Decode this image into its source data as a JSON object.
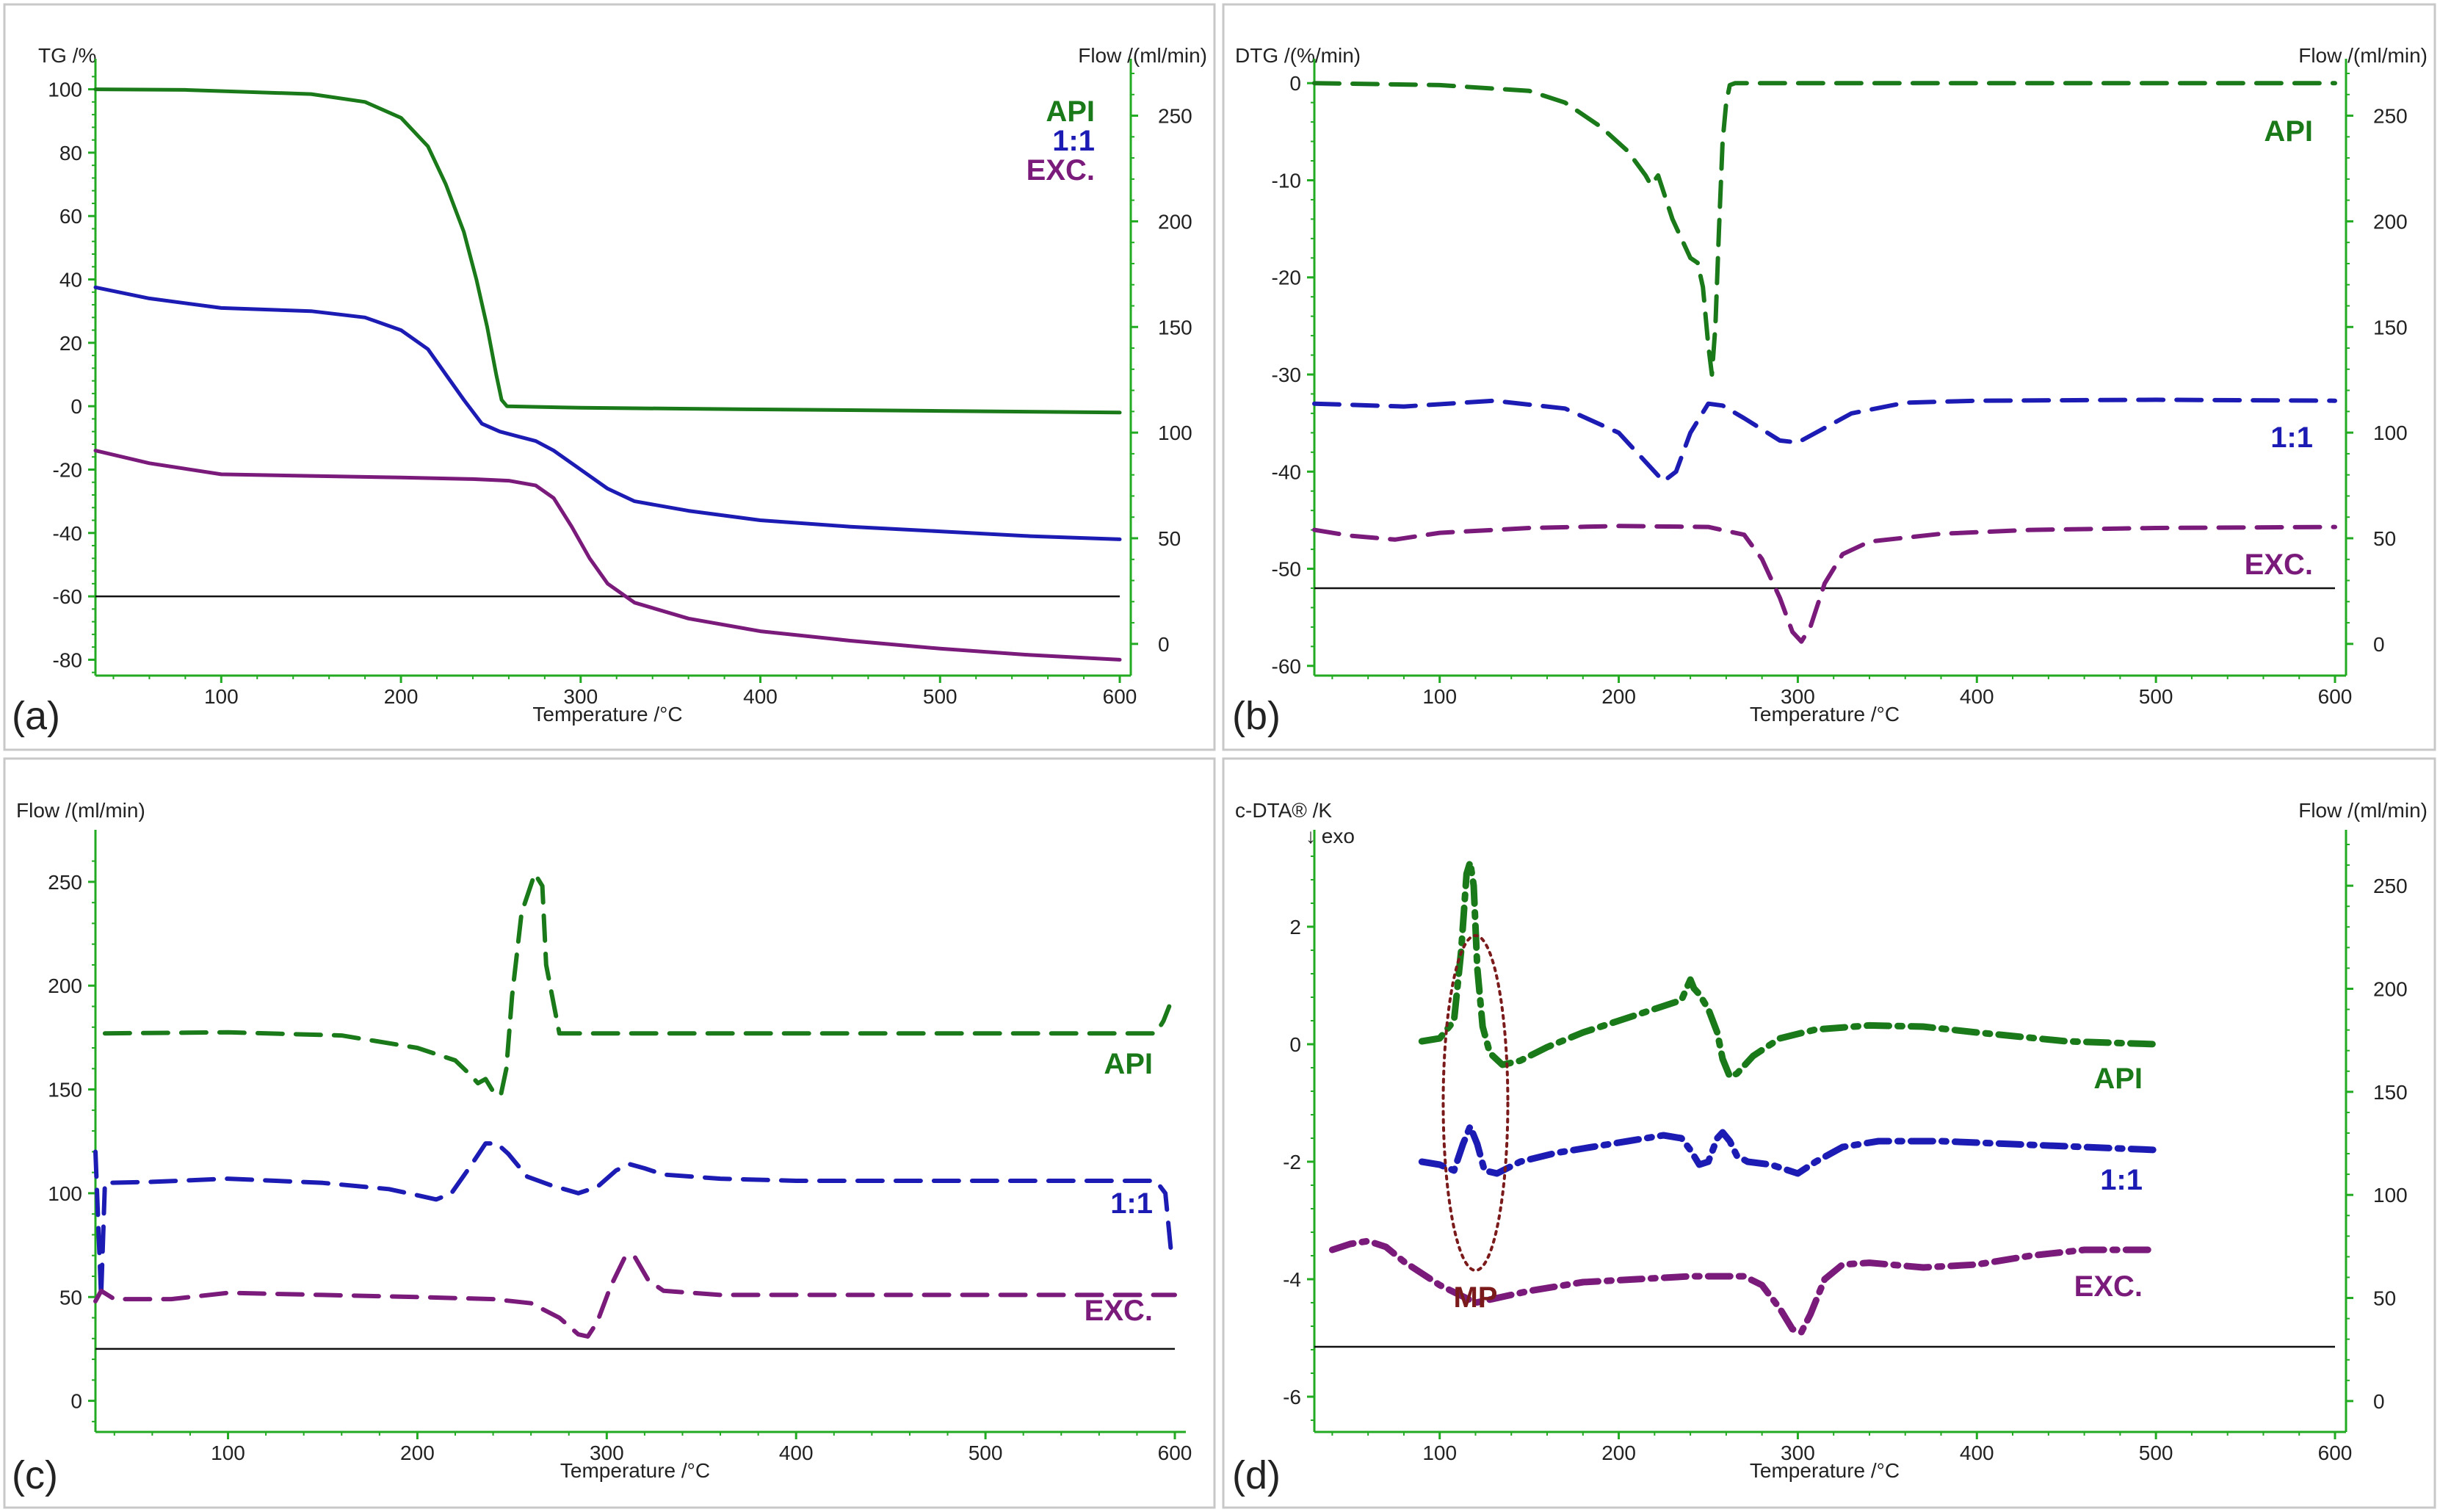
{
  "figure": {
    "panel_labels": [
      "(a)",
      "(b)",
      "(c)",
      "(d)"
    ]
  },
  "colors": {
    "api": "#1a7a1a",
    "mix": "#1c1cb4",
    "exc": "#7a1a7a",
    "mp": "#7a1a1a",
    "axis": "#22aa22",
    "baseline": "#111111",
    "frame": "#c8c8c8"
  },
  "chart_data": [
    {
      "type": "line",
      "panel": "(a)",
      "ylabel_left": "TG /%",
      "ylabel_right": "Flow /(ml/min)",
      "xlabel": "Temperature /°C",
      "xlim": [
        30,
        600
      ],
      "ylim_left": [
        -85,
        105
      ],
      "ylim_right": [
        -15,
        270
      ],
      "xticks": [
        100,
        200,
        300,
        400,
        500,
        600
      ],
      "yticks_left": [
        100,
        80,
        60,
        40,
        20,
        0,
        -20,
        -40,
        -60,
        -80
      ],
      "yticks_right": [
        250,
        200,
        150,
        100,
        50,
        0
      ],
      "style": "solid",
      "legend": [
        "API",
        "1:1",
        "EXC."
      ],
      "baseline_left": -60,
      "series": [
        {
          "name": "API",
          "x": [
            30,
            80,
            150,
            180,
            200,
            215,
            225,
            235,
            242,
            248,
            253,
            256,
            259,
            300,
            400,
            500,
            600
          ],
          "y": [
            100,
            99.8,
            98.5,
            96,
            91,
            82,
            70,
            55,
            40,
            25,
            10,
            2,
            0,
            -0.5,
            -1,
            -1.5,
            -2
          ]
        },
        {
          "name": "1:1",
          "x": [
            30,
            60,
            100,
            150,
            180,
            200,
            215,
            225,
            235,
            245,
            255,
            265,
            275,
            285,
            300,
            315,
            330,
            360,
            400,
            450,
            500,
            550,
            600
          ],
          "y": [
            37.5,
            34,
            31,
            30,
            28,
            24,
            18,
            10,
            2,
            -5.5,
            -8,
            -9.5,
            -11,
            -14,
            -20,
            -26,
            -30,
            -33,
            -36,
            -38,
            -39.5,
            -41,
            -42
          ]
        },
        {
          "name": "EXC.",
          "x": [
            30,
            60,
            100,
            150,
            200,
            240,
            260,
            275,
            285,
            295,
            305,
            315,
            330,
            360,
            400,
            450,
            500,
            550,
            600
          ],
          "y": [
            -14,
            -18,
            -21.5,
            -22,
            -22.5,
            -23,
            -23.5,
            -25,
            -29,
            -38,
            -48,
            -56,
            -62,
            -67,
            -71,
            -74,
            -76.5,
            -78.5,
            -80
          ]
        }
      ]
    },
    {
      "type": "line",
      "panel": "(b)",
      "ylabel_left": "DTG /(%/min)",
      "ylabel_right": "Flow /(ml/min)",
      "xlabel": "Temperature /°C",
      "xlim": [
        30,
        600
      ],
      "ylim_left": [
        -61,
        1
      ],
      "ylim_right": [
        -15,
        270
      ],
      "xticks": [
        100,
        200,
        300,
        400,
        500,
        600
      ],
      "yticks_left": [
        0,
        -10,
        -20,
        -30,
        -40,
        -50,
        -60
      ],
      "yticks_right": [
        250,
        200,
        150,
        100,
        50,
        0
      ],
      "style": "dashed",
      "legend": [
        "API",
        "1:1",
        "EXC."
      ],
      "baseline_left": -52,
      "series": [
        {
          "name": "API",
          "x": [
            30,
            100,
            150,
            170,
            190,
            205,
            215,
            218,
            222,
            230,
            240,
            244,
            247,
            250,
            252,
            254,
            256,
            258,
            260,
            262,
            265,
            300,
            400,
            500,
            600
          ],
          "y": [
            0,
            -0.2,
            -0.8,
            -2,
            -4.5,
            -7,
            -9.5,
            -10.5,
            -9.5,
            -14,
            -18,
            -18.5,
            -21,
            -27,
            -30,
            -25,
            -15,
            -6,
            -2,
            -0.2,
            0,
            0,
            0,
            0,
            0
          ]
        },
        {
          "name": "1:1",
          "x": [
            30,
            80,
            130,
            170,
            200,
            215,
            225,
            232,
            240,
            250,
            258,
            270,
            290,
            300,
            310,
            330,
            360,
            400,
            500,
            600
          ],
          "y": [
            -33,
            -33.3,
            -32.7,
            -33.5,
            -36,
            -39,
            -41,
            -40,
            -36,
            -33,
            -33.2,
            -34.5,
            -36.8,
            -37,
            -36,
            -34,
            -32.9,
            -32.7,
            -32.6,
            -32.7
          ]
        },
        {
          "name": "EXC.",
          "x": [
            30,
            50,
            75,
            100,
            150,
            200,
            250,
            270,
            280,
            290,
            297,
            302,
            307,
            315,
            325,
            340,
            380,
            430,
            500,
            600
          ],
          "y": [
            -46,
            -46.6,
            -47,
            -46.3,
            -45.8,
            -45.6,
            -45.7,
            -46.5,
            -49,
            -53,
            -56.5,
            -57.5,
            -56,
            -51.5,
            -48.5,
            -47.2,
            -46.4,
            -46,
            -45.8,
            -45.7
          ]
        }
      ]
    },
    {
      "type": "line",
      "panel": "(c)",
      "ylabel_left": "Flow /(ml/min)",
      "xlabel": "Temperature /°C",
      "xlim": [
        30,
        600
      ],
      "ylim_left": [
        -15,
        268
      ],
      "xticks": [
        100,
        200,
        300,
        400,
        500,
        600
      ],
      "yticks_left": [
        250,
        200,
        150,
        100,
        50,
        0
      ],
      "style": "dashed",
      "legend": [
        "API",
        "1:1",
        "EXC."
      ],
      "baseline_left": 25,
      "series": [
        {
          "name": "API",
          "x": [
            35,
            100,
            160,
            200,
            220,
            228,
            232,
            236,
            240,
            244,
            247,
            250,
            255,
            262,
            266,
            268,
            275,
            400,
            500,
            590,
            594,
            597
          ],
          "y": [
            177,
            177.5,
            176,
            170,
            164,
            157,
            153,
            155,
            149,
            147,
            160,
            195,
            235,
            254,
            248,
            210,
            177,
            177,
            177,
            177,
            183,
            190
          ]
        },
        {
          "name": "1:1",
          "x": [
            30,
            33,
            35,
            60,
            100,
            150,
            185,
            200,
            210,
            218,
            228,
            236,
            242,
            248,
            258,
            270,
            285,
            295,
            305,
            312,
            320,
            330,
            360,
            400,
            500,
            590,
            595,
            598
          ],
          "y": [
            120,
            50,
            105,
            105.5,
            107,
            105,
            102,
            99,
            97,
            100,
            113,
            124,
            124,
            119,
            108,
            104,
            100,
            103,
            111,
            114,
            112,
            109,
            107,
            106,
            106,
            106,
            100,
            72
          ]
        },
        {
          "name": "EXC.",
          "x": [
            30,
            33,
            40,
            70,
            100,
            150,
            200,
            240,
            260,
            275,
            285,
            290,
            295,
            302,
            310,
            315,
            322,
            330,
            360,
            400,
            500,
            600
          ],
          "y": [
            48,
            53,
            49,
            49,
            52,
            51,
            50,
            49,
            47,
            40,
            32,
            31,
            38,
            55,
            70,
            69,
            58,
            53,
            51,
            51,
            51,
            51
          ]
        }
      ]
    },
    {
      "type": "line",
      "panel": "(d)",
      "ylabel_left": "c-DTA® /K",
      "ylabel_right": "Flow /(ml/min)",
      "xlabel": "Temperature /°C",
      "annotation": "↓ exo",
      "xlim": [
        30,
        600
      ],
      "ylim_left": [
        -6.6,
        3.4
      ],
      "ylim_right": [
        -15,
        270
      ],
      "xticks": [
        100,
        200,
        300,
        400,
        500,
        600
      ],
      "yticks_left": [
        2,
        0,
        -2,
        -4,
        -6
      ],
      "yticks_right": [
        250,
        200,
        150,
        100,
        50,
        0
      ],
      "style": "dashdot",
      "legend": [
        "API",
        "1:1",
        "EXC."
      ],
      "baseline_left": -5.15,
      "highlight": {
        "label": "MP",
        "x": 120,
        "y": -1.0
      },
      "series": [
        {
          "name": "API",
          "x": [
            90,
            100,
            108,
            112,
            115,
            117,
            119,
            121,
            124,
            128,
            135,
            145,
            160,
            180,
            200,
            220,
            235,
            240,
            242,
            245,
            250,
            255,
            258,
            262,
            266,
            275,
            290,
            310,
            340,
            370,
            400,
            450,
            500
          ],
          "y": [
            0.05,
            0.1,
            0.4,
            1.6,
            2.9,
            3.1,
            2.7,
            1.3,
            0.3,
            -0.15,
            -0.35,
            -0.28,
            -0.05,
            0.2,
            0.4,
            0.6,
            0.75,
            1.1,
            0.95,
            0.85,
            0.6,
            0.2,
            -0.25,
            -0.55,
            -0.5,
            -0.2,
            0.1,
            0.25,
            0.32,
            0.3,
            0.2,
            0.05,
            0.0
          ]
        },
        {
          "name": "1:1",
          "x": [
            90,
            100,
            108,
            113,
            117,
            121,
            125,
            132,
            145,
            165,
            185,
            205,
            225,
            235,
            240,
            245,
            250,
            255,
            258,
            262,
            266,
            272,
            285,
            300,
            310,
            325,
            345,
            380,
            420,
            460,
            500
          ],
          "y": [
            -2.0,
            -2.05,
            -2.15,
            -1.7,
            -1.4,
            -1.7,
            -2.15,
            -2.2,
            -2.0,
            -1.85,
            -1.75,
            -1.65,
            -1.55,
            -1.6,
            -1.8,
            -2.05,
            -2.0,
            -1.6,
            -1.5,
            -1.65,
            -1.9,
            -2.0,
            -2.05,
            -2.2,
            -2.0,
            -1.75,
            -1.65,
            -1.65,
            -1.7,
            -1.75,
            -1.8
          ]
        },
        {
          "name": "EXC.",
          "x": [
            40,
            50,
            60,
            70,
            80,
            100,
            120,
            135,
            150,
            180,
            210,
            240,
            270,
            280,
            290,
            297,
            302,
            307,
            315,
            325,
            340,
            370,
            400,
            430,
            460,
            480,
            500
          ],
          "y": [
            -3.5,
            -3.4,
            -3.35,
            -3.45,
            -3.7,
            -4.1,
            -4.4,
            -4.3,
            -4.2,
            -4.05,
            -4.0,
            -3.95,
            -3.95,
            -4.1,
            -4.5,
            -4.85,
            -4.9,
            -4.6,
            -4.0,
            -3.75,
            -3.72,
            -3.8,
            -3.75,
            -3.6,
            -3.5,
            -3.5,
            -3.5
          ]
        }
      ]
    }
  ]
}
